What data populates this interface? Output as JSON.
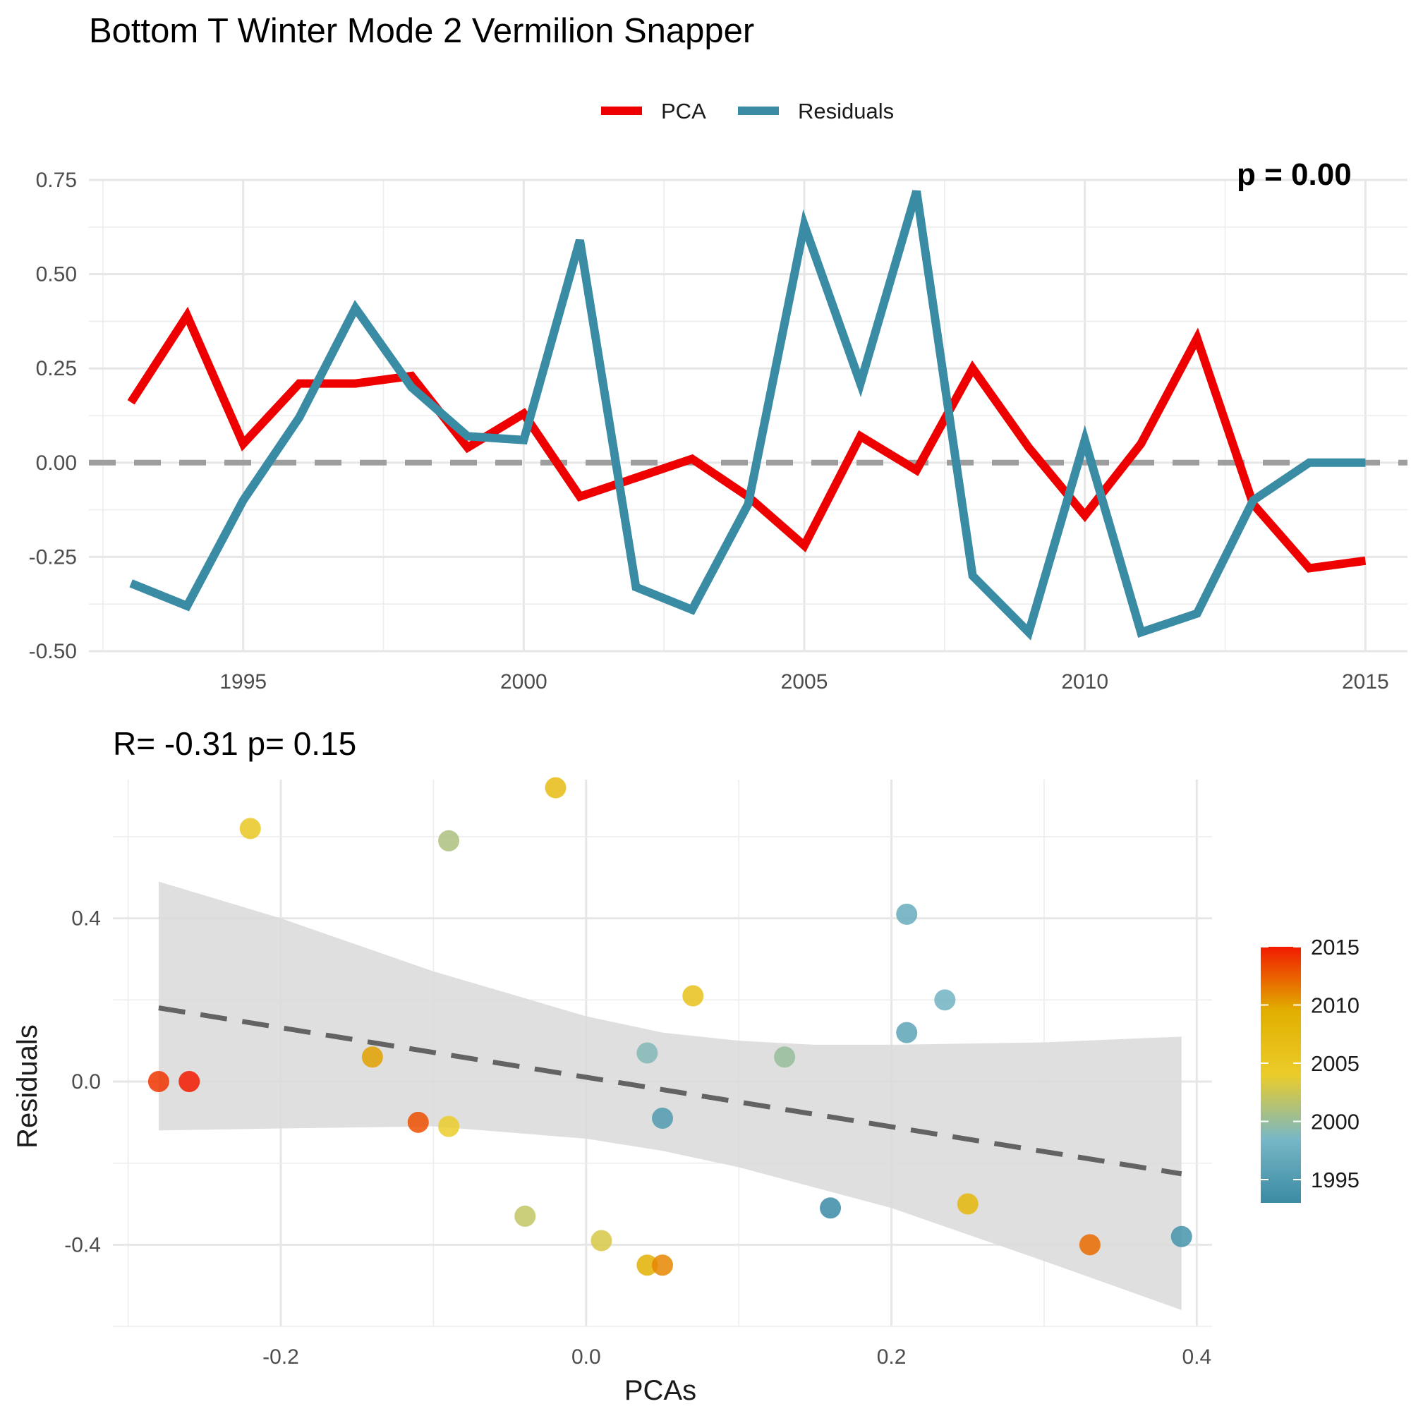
{
  "title": "Bottom T Winter Mode 2 Vermilion Snapper",
  "colors": {
    "pca": "#EE0000",
    "residuals": "#3A8BA4",
    "zero_line": "#9E9E9E",
    "trend_line": "#636363",
    "ribbon": "#D9D9D9"
  },
  "chart_data": [
    {
      "type": "line",
      "legend": {
        "position": "top",
        "entries": [
          "PCA",
          "Residuals"
        ]
      },
      "corner_annotation": "p = 0.00",
      "x": [
        1993,
        1994,
        1995,
        1996,
        1997,
        1998,
        1999,
        2000,
        2001,
        2002,
        2003,
        2004,
        2005,
        2006,
        2007,
        2008,
        2009,
        2010,
        2011,
        2012,
        2013,
        2014,
        2015
      ],
      "series": [
        {
          "name": "PCA",
          "color": "#EE0000",
          "values": [
            0.16,
            0.39,
            0.05,
            0.21,
            0.21,
            0.23,
            0.04,
            0.13,
            -0.09,
            -0.04,
            0.01,
            -0.09,
            -0.22,
            0.07,
            -0.02,
            0.25,
            0.04,
            -0.14,
            0.05,
            0.33,
            -0.11,
            -0.28,
            -0.26
          ]
        },
        {
          "name": "Residuals",
          "color": "#3A8BA4",
          "values": [
            -0.32,
            -0.38,
            -0.1,
            0.12,
            0.41,
            0.2,
            0.07,
            0.06,
            0.59,
            -0.33,
            -0.39,
            -0.11,
            0.63,
            0.21,
            0.72,
            -0.3,
            -0.45,
            0.06,
            -0.45,
            -0.4,
            -0.1,
            0.0,
            0.0
          ]
        }
      ],
      "xticks": [
        "1995",
        "2000",
        "2005",
        "2010",
        "2015"
      ],
      "yticks": [
        "-0.50",
        "-0.25",
        "0.00",
        "0.25",
        "0.50",
        "0.75"
      ],
      "xlim": [
        1992.25,
        2015.75
      ],
      "ylim": [
        -0.5,
        0.75
      ],
      "reference_line_y": 0,
      "grid": true
    },
    {
      "type": "scatter",
      "title": "R= -0.31  p= 0.15",
      "xlabel": "PCAs",
      "ylabel": "Residuals",
      "xticks": [
        "-0.2",
        "0.0",
        "0.2",
        "0.4"
      ],
      "yticks": [
        "-0.4",
        "0.0",
        "0.4"
      ],
      "xlim": [
        -0.31,
        0.41
      ],
      "ylim": [
        -0.6,
        0.74
      ],
      "color_scale": {
        "label_values": [
          "1995",
          "2000",
          "2005",
          "2010",
          "2015"
        ],
        "min": 1993,
        "max": 2015
      },
      "points": [
        {
          "x": 0.16,
          "y": -0.31,
          "year": 1993
        },
        {
          "x": 0.39,
          "y": -0.38,
          "year": 1994
        },
        {
          "x": 0.05,
          "y": -0.09,
          "year": 1995
        },
        {
          "x": 0.21,
          "y": 0.12,
          "year": 1996
        },
        {
          "x": 0.21,
          "y": 0.41,
          "year": 1997
        },
        {
          "x": 0.235,
          "y": 0.2,
          "year": 1998
        },
        {
          "x": 0.04,
          "y": 0.07,
          "year": 1999
        },
        {
          "x": 0.13,
          "y": 0.06,
          "year": 2000
        },
        {
          "x": -0.09,
          "y": 0.59,
          "year": 2001
        },
        {
          "x": -0.04,
          "y": -0.33,
          "year": 2002
        },
        {
          "x": 0.01,
          "y": -0.39,
          "year": 2003
        },
        {
          "x": -0.09,
          "y": -0.11,
          "year": 2004
        },
        {
          "x": -0.22,
          "y": 0.62,
          "year": 2005
        },
        {
          "x": 0.07,
          "y": 0.21,
          "year": 2006
        },
        {
          "x": -0.02,
          "y": 0.72,
          "year": 2007
        },
        {
          "x": 0.25,
          "y": -0.3,
          "year": 2008
        },
        {
          "x": 0.04,
          "y": -0.45,
          "year": 2009
        },
        {
          "x": -0.14,
          "y": 0.06,
          "year": 2010
        },
        {
          "x": 0.05,
          "y": -0.45,
          "year": 2011
        },
        {
          "x": 0.33,
          "y": -0.4,
          "year": 2012
        },
        {
          "x": -0.11,
          "y": -0.1,
          "year": 2013
        },
        {
          "x": -0.28,
          "y": 0.0,
          "year": 2014
        },
        {
          "x": -0.26,
          "y": 0.0,
          "year": 2015
        }
      ],
      "trend": {
        "slope": -0.607,
        "intercept": 0.0105,
        "x_range": [
          -0.28,
          0.39
        ]
      },
      "ribbon": [
        {
          "x": -0.28,
          "lo": -0.12,
          "hi": 0.49
        },
        {
          "x": -0.2,
          "lo": -0.115,
          "hi": 0.4
        },
        {
          "x": -0.1,
          "lo": -0.11,
          "hi": 0.27
        },
        {
          "x": 0.0,
          "lo": -0.14,
          "hi": 0.16
        },
        {
          "x": 0.05,
          "lo": -0.17,
          "hi": 0.12
        },
        {
          "x": 0.1,
          "lo": -0.21,
          "hi": 0.1
        },
        {
          "x": 0.15,
          "lo": -0.26,
          "hi": 0.09
        },
        {
          "x": 0.2,
          "lo": -0.31,
          "hi": 0.09
        },
        {
          "x": 0.3,
          "lo": -0.44,
          "hi": 0.096
        },
        {
          "x": 0.39,
          "lo": -0.56,
          "hi": 0.11
        }
      ],
      "grid": true
    }
  ]
}
